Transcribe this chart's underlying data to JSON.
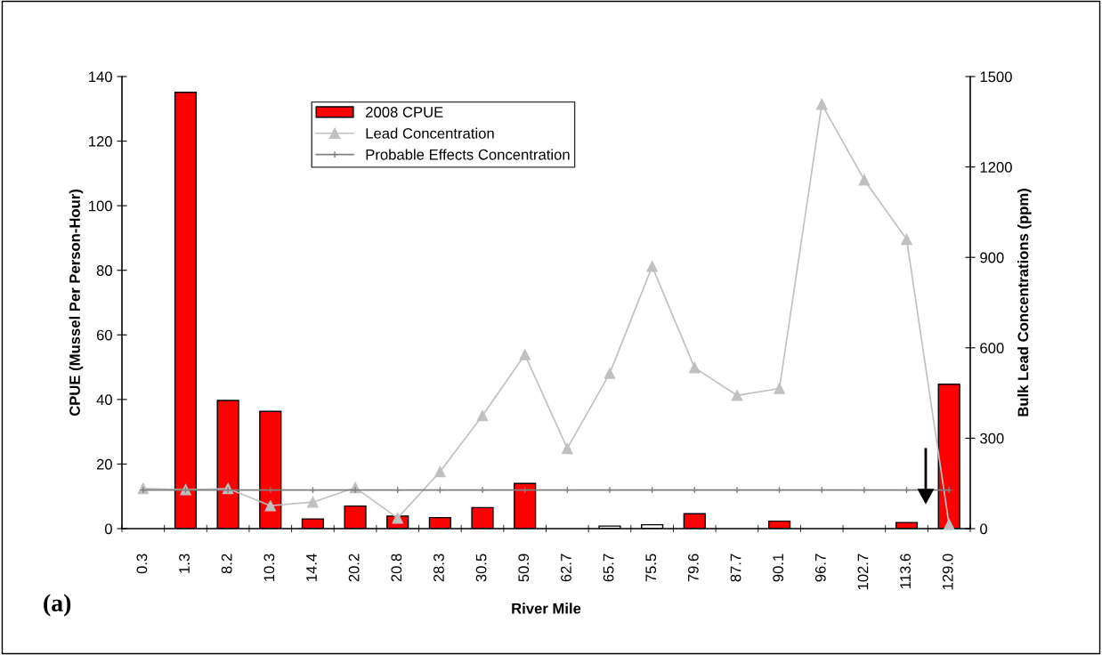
{
  "chart_data": {
    "type": "bar",
    "categories": [
      "0.3",
      "1.3",
      "8.2",
      "10.3",
      "14.4",
      "20.2",
      "20.8",
      "28.3",
      "30.5",
      "50.9",
      "62.7",
      "65.7",
      "75.5",
      "79.6",
      "87.7",
      "90.1",
      "96.7",
      "102.7",
      "113.6",
      "129.0"
    ],
    "xlabel": "River Mile",
    "ylabel": "CPUE (Mussel Per Person-Hour)",
    "y2label": "Bulk Lead Concentrations (ppm)",
    "ylim": [
      0,
      140
    ],
    "yticks": [
      0,
      20,
      40,
      60,
      80,
      100,
      120,
      140
    ],
    "y2lim": [
      0,
      1500
    ],
    "y2ticks": [
      0,
      300,
      600,
      900,
      1200,
      1500
    ],
    "series": [
      {
        "name": "2008 CPUE",
        "color": "#ff0000",
        "colors": [
          "#ff0000",
          "#ff0000",
          "#ff0000",
          "#ff0000",
          "#ff0000",
          "#ff0000",
          "#ff0000",
          "#ff0000",
          "#ff0000",
          "#ff0000",
          "#ffffff",
          "#ffffff",
          "#ffffff",
          "#ff0000",
          "#ff0000",
          "#ff0000",
          "#ff0000",
          "#ff0000",
          "#ff0000",
          "#ff0000"
        ],
        "values": [
          null,
          135.1,
          39.7,
          36.3,
          3.0,
          7.0,
          3.9,
          3.4,
          6.5,
          14.0,
          null,
          0.8,
          1.2,
          4.6,
          null,
          2.3,
          null,
          null,
          1.9,
          44.7
        ]
      },
      {
        "name": "Lead Concentration",
        "type": "line",
        "axis": "y2",
        "color": "#c0c0c0",
        "marker": "triangle",
        "values": [
          133,
          129,
          133,
          76,
          88,
          136,
          35,
          189,
          375,
          577,
          266,
          515,
          870,
          534,
          442,
          465,
          1408,
          1157,
          960,
          14
        ]
      },
      {
        "name": "Probable Effects Concentration",
        "type": "line",
        "axis": "y2",
        "color": "#808080",
        "marker": "cross",
        "values": [
          128,
          128,
          128,
          128,
          128,
          128,
          128,
          128,
          128,
          128,
          128,
          128,
          128,
          128,
          128,
          128,
          128,
          128,
          128,
          128
        ]
      }
    ],
    "legend": "top center",
    "grid": false,
    "annotations": [
      "(a)"
    ]
  }
}
